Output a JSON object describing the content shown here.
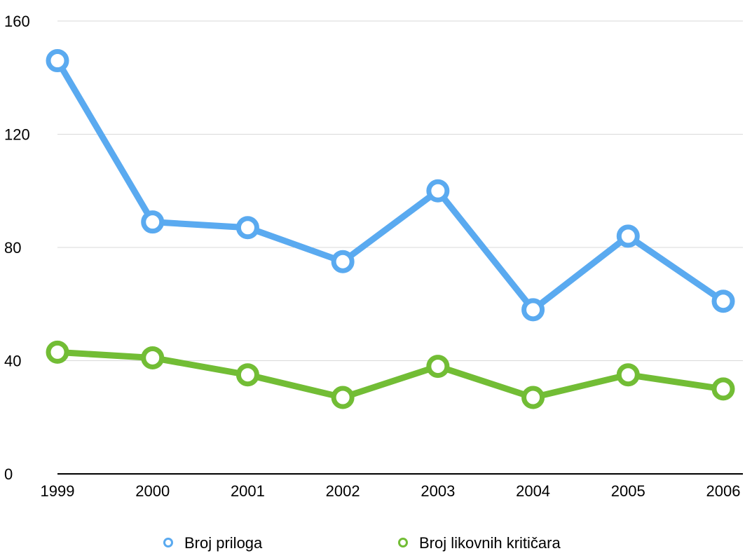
{
  "chart_data": {
    "type": "line",
    "title": "",
    "xlabel": "",
    "ylabel": "",
    "categories": [
      "1999",
      "2000",
      "2001",
      "2002",
      "2003",
      "2004",
      "2005",
      "2006"
    ],
    "ylim": [
      0,
      160
    ],
    "yticks": [
      "0",
      "40",
      "80",
      "120",
      "160"
    ],
    "grid": true,
    "legend_position": "bottom",
    "series": [
      {
        "name": "Broj priloga",
        "color": "#5aaaf0",
        "values": [
          146,
          89,
          87,
          75,
          100,
          58,
          84,
          61
        ]
      },
      {
        "name": "Broj likovnih kritičara",
        "color": "#72bd35",
        "values": [
          43,
          41,
          35,
          27,
          38,
          27,
          35,
          30
        ]
      }
    ]
  }
}
